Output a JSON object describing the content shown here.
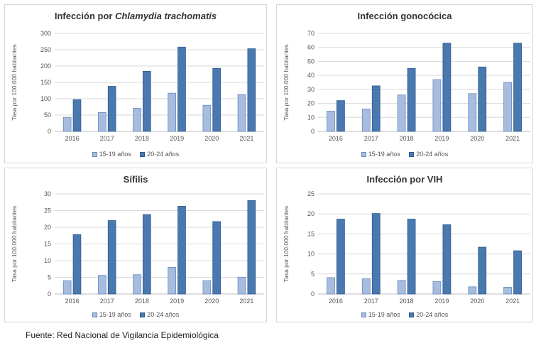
{
  "chart_data": [
    {
      "type": "bar",
      "title": "Infección por",
      "title_italic": "Chlamydia trachomatis",
      "ylabel": "Tasa por 100.000 habitantes",
      "categories": [
        "2016",
        "2017",
        "2018",
        "2019",
        "2020",
        "2021"
      ],
      "ylim": [
        0,
        300
      ],
      "yticks": [
        0,
        50,
        100,
        150,
        200,
        250,
        300
      ],
      "grid": true,
      "legend": "bottom",
      "series": [
        {
          "name": "15-19 años",
          "values": [
            43,
            58,
            71,
            117,
            80,
            113
          ]
        },
        {
          "name": "20-24 años",
          "values": [
            97,
            138,
            184,
            258,
            193,
            253
          ]
        }
      ]
    },
    {
      "type": "bar",
      "title": "Infección gonocócica",
      "ylabel": "Tasa por 100.000 habitantes",
      "categories": [
        "2016",
        "2017",
        "2018",
        "2019",
        "2020",
        "2021"
      ],
      "ylim": [
        0,
        70
      ],
      "yticks": [
        0,
        10,
        20,
        30,
        40,
        50,
        60,
        70
      ],
      "grid": true,
      "legend": "bottom",
      "series": [
        {
          "name": "15-19 años",
          "values": [
            14.5,
            16,
            26,
            37,
            27,
            35
          ]
        },
        {
          "name": "20-24 años",
          "values": [
            22,
            32.5,
            45,
            63,
            46,
            63
          ]
        }
      ]
    },
    {
      "type": "bar",
      "title": "Sífilis",
      "ylabel": "Tasa por 100.000 habitantes",
      "categories": [
        "2016",
        "2017",
        "2018",
        "2019",
        "2020",
        "2021"
      ],
      "ylim": [
        0,
        30
      ],
      "yticks": [
        0,
        5,
        10,
        15,
        20,
        25,
        30
      ],
      "grid": true,
      "legend": "bottom",
      "series": [
        {
          "name": "15-19 años",
          "values": [
            4,
            5.6,
            5.8,
            8,
            4,
            5
          ]
        },
        {
          "name": "20-24 años",
          "values": [
            17.8,
            22,
            23.8,
            26.3,
            21.7,
            28
          ]
        }
      ]
    },
    {
      "type": "bar",
      "title": "Infección por VIH",
      "ylabel": "Tasa por 100.000 habitantes",
      "categories": [
        "2016",
        "2017",
        "2018",
        "2019",
        "2020",
        "2021"
      ],
      "ylim": [
        0,
        25
      ],
      "yticks": [
        0,
        5,
        10,
        15,
        20,
        25
      ],
      "grid": true,
      "legend": "bottom",
      "series": [
        {
          "name": "15-19 años",
          "values": [
            4.1,
            3.8,
            3.4,
            3.1,
            1.8,
            1.7
          ]
        },
        {
          "name": "20-24 años",
          "values": [
            18.7,
            20.1,
            18.7,
            17.3,
            11.7,
            10.8
          ]
        }
      ]
    }
  ],
  "colors": {
    "series_15_19": "#a6bde0",
    "series_15_19_border": "#6a8ab8",
    "series_20_24": "#4a79b0",
    "series_20_24_border": "#2e5a8c",
    "grid": "#d9d9d9",
    "axis": "#bfbfbf"
  },
  "source": "Fuente: Red Nacional de Vigilancia Epidemiológica"
}
